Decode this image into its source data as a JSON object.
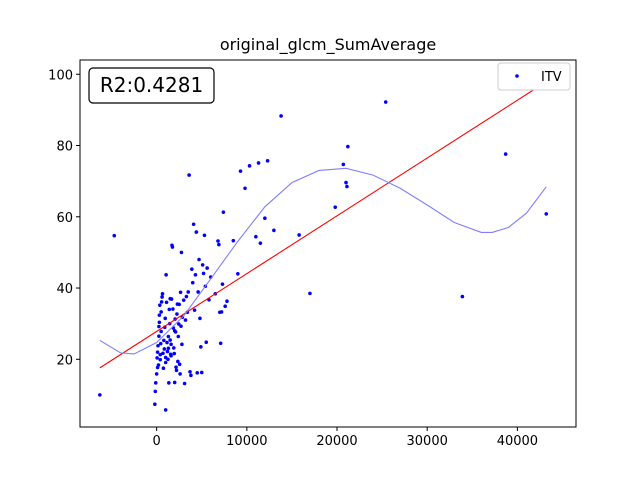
{
  "chart_data": {
    "type": "scatter",
    "title": "original_glcm_SumAverage",
    "xlabel": "",
    "ylabel": "",
    "xlim": [
      -8500,
      46500
    ],
    "ylim": [
      1,
      104
    ],
    "xticks": [
      0,
      10000,
      20000,
      30000,
      40000
    ],
    "yticks": [
      20,
      40,
      60,
      80,
      100
    ],
    "grid": false,
    "legend_position": "top-right",
    "annotation": "R2:0.4281",
    "series": [
      {
        "name": "ITV",
        "kind": "scatter",
        "color": "#0000ff",
        "points": [
          [
            -6300,
            10.0
          ],
          [
            -4700,
            54.7
          ],
          [
            -200,
            7.4
          ],
          [
            -150,
            11.0
          ],
          [
            -100,
            13.4
          ],
          [
            0,
            15.9
          ],
          [
            50,
            20.4
          ],
          [
            100,
            17.7
          ],
          [
            100,
            22.0
          ],
          [
            150,
            23.8
          ],
          [
            200,
            18.4
          ],
          [
            250,
            26.5
          ],
          [
            250,
            29.2
          ],
          [
            300,
            30.4
          ],
          [
            300,
            32.4
          ],
          [
            350,
            35.2
          ],
          [
            400,
            19.9
          ],
          [
            400,
            21.3
          ],
          [
            450,
            24.4
          ],
          [
            500,
            27.8
          ],
          [
            500,
            33.3
          ],
          [
            550,
            36.1
          ],
          [
            600,
            37.5
          ],
          [
            650,
            38.4
          ],
          [
            700,
            21.7
          ],
          [
            750,
            17.5
          ],
          [
            800,
            25.3
          ],
          [
            850,
            22.9
          ],
          [
            900,
            29.0
          ],
          [
            950,
            31.5
          ],
          [
            1000,
            20.5
          ],
          [
            1000,
            19.1
          ],
          [
            1000,
            5.8
          ],
          [
            1050,
            43.7
          ],
          [
            1100,
            36.0
          ],
          [
            1150,
            24.7
          ],
          [
            1200,
            22.2
          ],
          [
            1250,
            20.0
          ],
          [
            1300,
            23.1
          ],
          [
            1300,
            26.4
          ],
          [
            1350,
            13.4
          ],
          [
            1400,
            34.0
          ],
          [
            1450,
            30.0
          ],
          [
            1500,
            25.4
          ],
          [
            1500,
            37.0
          ],
          [
            1550,
            21.4
          ],
          [
            1600,
            21.0
          ],
          [
            1600,
            24.2
          ],
          [
            1650,
            36.9
          ],
          [
            1700,
            52.0
          ],
          [
            1750,
            51.5
          ],
          [
            1800,
            34.1
          ],
          [
            1850,
            28.8
          ],
          [
            1900,
            23.2
          ],
          [
            1950,
            21.6
          ],
          [
            2000,
            13.5
          ],
          [
            2000,
            28.0
          ],
          [
            2050,
            31.3
          ],
          [
            2100,
            27.7
          ],
          [
            2150,
            17.8
          ],
          [
            2200,
            16.9
          ],
          [
            2250,
            32.7
          ],
          [
            2300,
            35.5
          ],
          [
            2350,
            19.4
          ],
          [
            2400,
            26.4
          ],
          [
            2450,
            29.9
          ],
          [
            2500,
            35.4
          ],
          [
            2550,
            18.6
          ],
          [
            2600,
            15.9
          ],
          [
            2650,
            38.8
          ],
          [
            2700,
            29.3
          ],
          [
            2750,
            50.0
          ],
          [
            2800,
            24.2
          ],
          [
            2850,
            31.8
          ],
          [
            3000,
            36.6
          ],
          [
            3100,
            13.2
          ],
          [
            3200,
            31.0
          ],
          [
            3300,
            37.6
          ],
          [
            3400,
            33.2
          ],
          [
            3500,
            38.9
          ],
          [
            3600,
            71.7
          ],
          [
            3700,
            16.5
          ],
          [
            3800,
            15.5
          ],
          [
            3900,
            45.3
          ],
          [
            4000,
            41.5
          ],
          [
            4100,
            57.9
          ],
          [
            4200,
            33.8
          ],
          [
            4300,
            43.7
          ],
          [
            4400,
            55.7
          ],
          [
            4500,
            16.2
          ],
          [
            4600,
            38.9
          ],
          [
            4700,
            48.0
          ],
          [
            4800,
            31.5
          ],
          [
            4900,
            23.5
          ],
          [
            5000,
            16.3
          ],
          [
            5100,
            46.5
          ],
          [
            5200,
            44.1
          ],
          [
            5300,
            54.8
          ],
          [
            5400,
            40.5
          ],
          [
            5500,
            24.8
          ],
          [
            5600,
            45.6
          ],
          [
            5800,
            36.7
          ],
          [
            6000,
            43.1
          ],
          [
            6500,
            38.4
          ],
          [
            6800,
            53.2
          ],
          [
            6900,
            52.2
          ],
          [
            7000,
            33.2
          ],
          [
            7100,
            24.5
          ],
          [
            7200,
            33.3
          ],
          [
            7300,
            41.1
          ],
          [
            7400,
            61.3
          ],
          [
            7600,
            34.9
          ],
          [
            7800,
            36.3
          ],
          [
            8500,
            53.3
          ],
          [
            9000,
            44.0
          ],
          [
            9300,
            72.8
          ],
          [
            9800,
            68.0
          ],
          [
            10300,
            74.3
          ],
          [
            11000,
            54.4
          ],
          [
            11300,
            75.1
          ],
          [
            11500,
            52.6
          ],
          [
            12000,
            59.6
          ],
          [
            12300,
            75.7
          ],
          [
            13000,
            56.2
          ],
          [
            13800,
            88.3
          ],
          [
            15800,
            54.9
          ],
          [
            17000,
            38.5
          ],
          [
            19800,
            62.7
          ],
          [
            20700,
            74.7
          ],
          [
            21000,
            69.6
          ],
          [
            21100,
            68.5
          ],
          [
            21200,
            79.7
          ],
          [
            25400,
            92.2
          ],
          [
            33900,
            37.6
          ],
          [
            38700,
            77.6
          ],
          [
            43200,
            60.8
          ]
        ]
      },
      {
        "name": "linear-fit",
        "kind": "line",
        "color": "#ff0000",
        "x": [
          -6300,
          43200
        ],
        "y": [
          17.6,
          97.9
        ]
      },
      {
        "name": "poly-fit",
        "kind": "line",
        "color": "#7f7fff",
        "x": [
          -6300,
          -4000,
          -2500,
          0,
          3000,
          6000,
          9000,
          12000,
          15000,
          18000,
          21000,
          24000,
          27000,
          30000,
          33000,
          36000,
          37200,
          39000,
          41000,
          43200
        ],
        "y": [
          25.3,
          21.8,
          21.5,
          24.7,
          32.2,
          42.6,
          53.1,
          62.8,
          69.6,
          73.0,
          73.6,
          71.7,
          68.0,
          63.3,
          58.4,
          55.6,
          55.6,
          57.0,
          61.0,
          68.4
        ]
      }
    ]
  }
}
